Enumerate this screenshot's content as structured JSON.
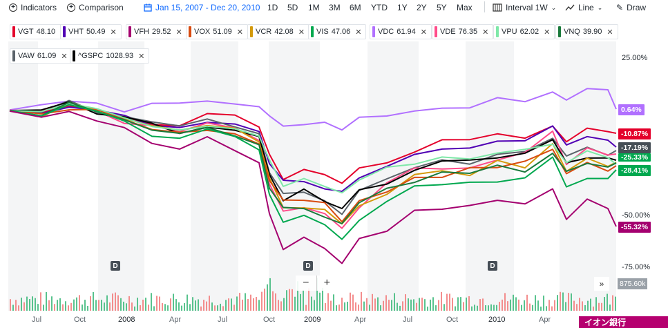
{
  "toolbar": {
    "indicators": "Indicators",
    "comparison": "Comparison",
    "date_range": "Jan 15, 2007 - Dec 20, 2010",
    "periods": [
      "1D",
      "5D",
      "1M",
      "3M",
      "6M",
      "YTD",
      "1Y",
      "2Y",
      "5Y",
      "Max"
    ],
    "interval": "Interval 1W",
    "chart_type": "Line",
    "draw": "Draw"
  },
  "tags": [
    {
      "sym": "VGT",
      "val": "48.10",
      "color": "#e4002b"
    },
    {
      "sym": "VHT",
      "val": "50.49",
      "color": "#5100b4"
    },
    {
      "sym": "VFH",
      "val": "29.52",
      "color": "#a4006f"
    },
    {
      "sym": "VOX",
      "val": "51.09",
      "color": "#d84b10"
    },
    {
      "sym": "VCR",
      "val": "42.08",
      "color": "#d49a0c"
    },
    {
      "sym": "VIS",
      "val": "47.06",
      "color": "#00a84f"
    },
    {
      "sym": "VDC",
      "val": "61.94",
      "color": "#b170ff"
    },
    {
      "sym": "VDE",
      "val": "76.35",
      "color": "#ff4b8a"
    },
    {
      "sym": "VPU",
      "val": "62.02",
      "color": "#7ee8a8"
    },
    {
      "sym": "VNQ",
      "val": "39.90",
      "color": "#1a7a3c"
    },
    {
      "sym": "VAW",
      "val": "61.09",
      "color": "#5b636a"
    },
    {
      "sym": "^GSPC",
      "val": "1028.93",
      "color": "#000000"
    }
  ],
  "y_axis": [
    "25.00%",
    "-50.00%",
    "-75.00%"
  ],
  "x_axis": [
    "Jul",
    "Oct",
    "2008",
    "Apr",
    "Jul",
    "Oct",
    "2009",
    "Apr",
    "Jul",
    "Oct",
    "2010",
    "Apr"
  ],
  "badges": [
    {
      "text": "0.64%",
      "color": "#b170ff"
    },
    {
      "text": "-10.87%",
      "color": "#e4002b"
    },
    {
      "text": "-17.19%",
      "color": "#464e56"
    },
    {
      "text": "-25.33%",
      "color": "#00a84f"
    },
    {
      "text": "-28.41%",
      "color": "#00a84f"
    },
    {
      "text": "-55.32%",
      "color": "#a4006f"
    }
  ],
  "dividend_marker": "D",
  "zoom": {
    "minus": "−",
    "plus": "+"
  },
  "scroll": "»",
  "volume_label": "875.60k",
  "ad_text": "イオン銀行"
}
